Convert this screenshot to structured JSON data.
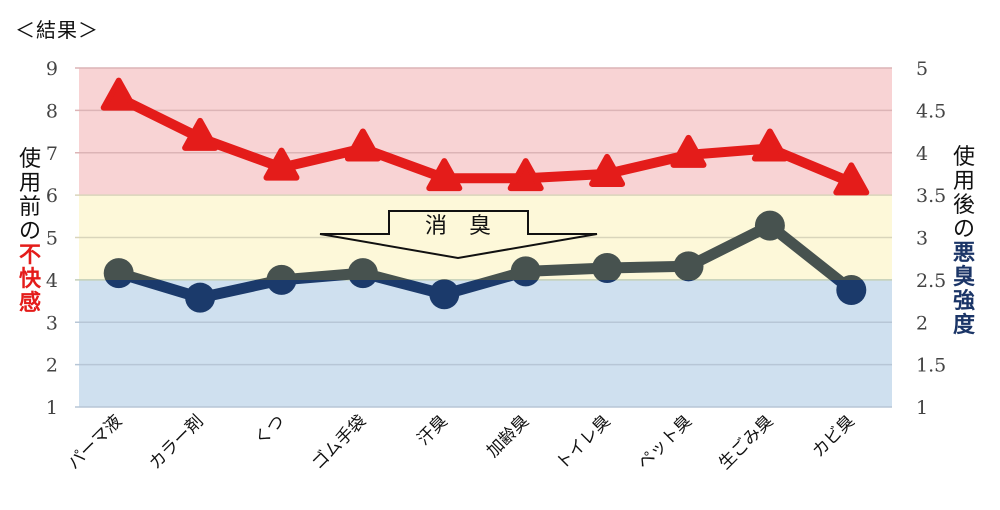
{
  "title": "＜結果＞",
  "axis_titles": {
    "left_prefix": "使用前の",
    "left_emphasis": "不快感",
    "right_prefix": "使用後の",
    "right_emphasis": "悪臭強度"
  },
  "annotation": {
    "label": "消　臭",
    "shape": "down-arrow"
  },
  "colors": {
    "band_high": "#f8d3d4",
    "band_mid": "#fdf8d9",
    "band_low": "#cfe0ef",
    "before_line": "#e41c1a",
    "after_line_above": "#47524f",
    "after_line_below": "#1b3a6b",
    "left_emphasis": "#e41c1a",
    "right_emphasis": "#1b3567"
  },
  "chart_data": {
    "type": "line",
    "title": "＜結果＞",
    "xlabel": "",
    "ylabel": "使用前の不快感",
    "ylabel_right": "使用後の悪臭強度",
    "categories": [
      "パーマ液",
      "カラー剤",
      "くつ",
      "ゴム手袋",
      "汗臭",
      "加齢臭",
      "トイレ臭",
      "ペット臭",
      "生ごみ臭",
      "カビ臭"
    ],
    "ylim": [
      1,
      9
    ],
    "ylim_right": [
      1,
      5
    ],
    "yticks": [
      1,
      2,
      3,
      4,
      5,
      6,
      7,
      8,
      9
    ],
    "yticks_right": [
      1,
      1.5,
      2,
      2.5,
      3,
      3.5,
      4,
      4.5,
      5
    ],
    "grid": true,
    "bands": [
      {
        "from": 6,
        "to": 9,
        "axis": "left",
        "color": "#f8d3d4"
      },
      {
        "from": 4,
        "to": 6,
        "axis": "left",
        "color": "#fdf8d9"
      },
      {
        "from": 1,
        "to": 4,
        "axis": "left",
        "color": "#cfe0ef"
      }
    ],
    "series": [
      {
        "name": "使用前の不快感",
        "axis": "left",
        "marker": "triangle",
        "color": "#e41c1a",
        "values": [
          8.3,
          7.35,
          6.65,
          7.1,
          6.4,
          6.4,
          6.5,
          6.95,
          7.1,
          6.3
        ]
      },
      {
        "name": "使用後の悪臭強度",
        "axis": "right",
        "marker": "circle",
        "color": "#47524f",
        "color_below_threshold": "#1b3a6b",
        "values": [
          2.58,
          2.29,
          2.5,
          2.58,
          2.33,
          2.6,
          2.64,
          2.66,
          3.14,
          2.38
        ]
      }
    ],
    "annotations": [
      {
        "text": "消臭",
        "type": "down-arrow",
        "x_range": [
          "カラー剤",
          "トイレ臭"
        ]
      }
    ]
  }
}
